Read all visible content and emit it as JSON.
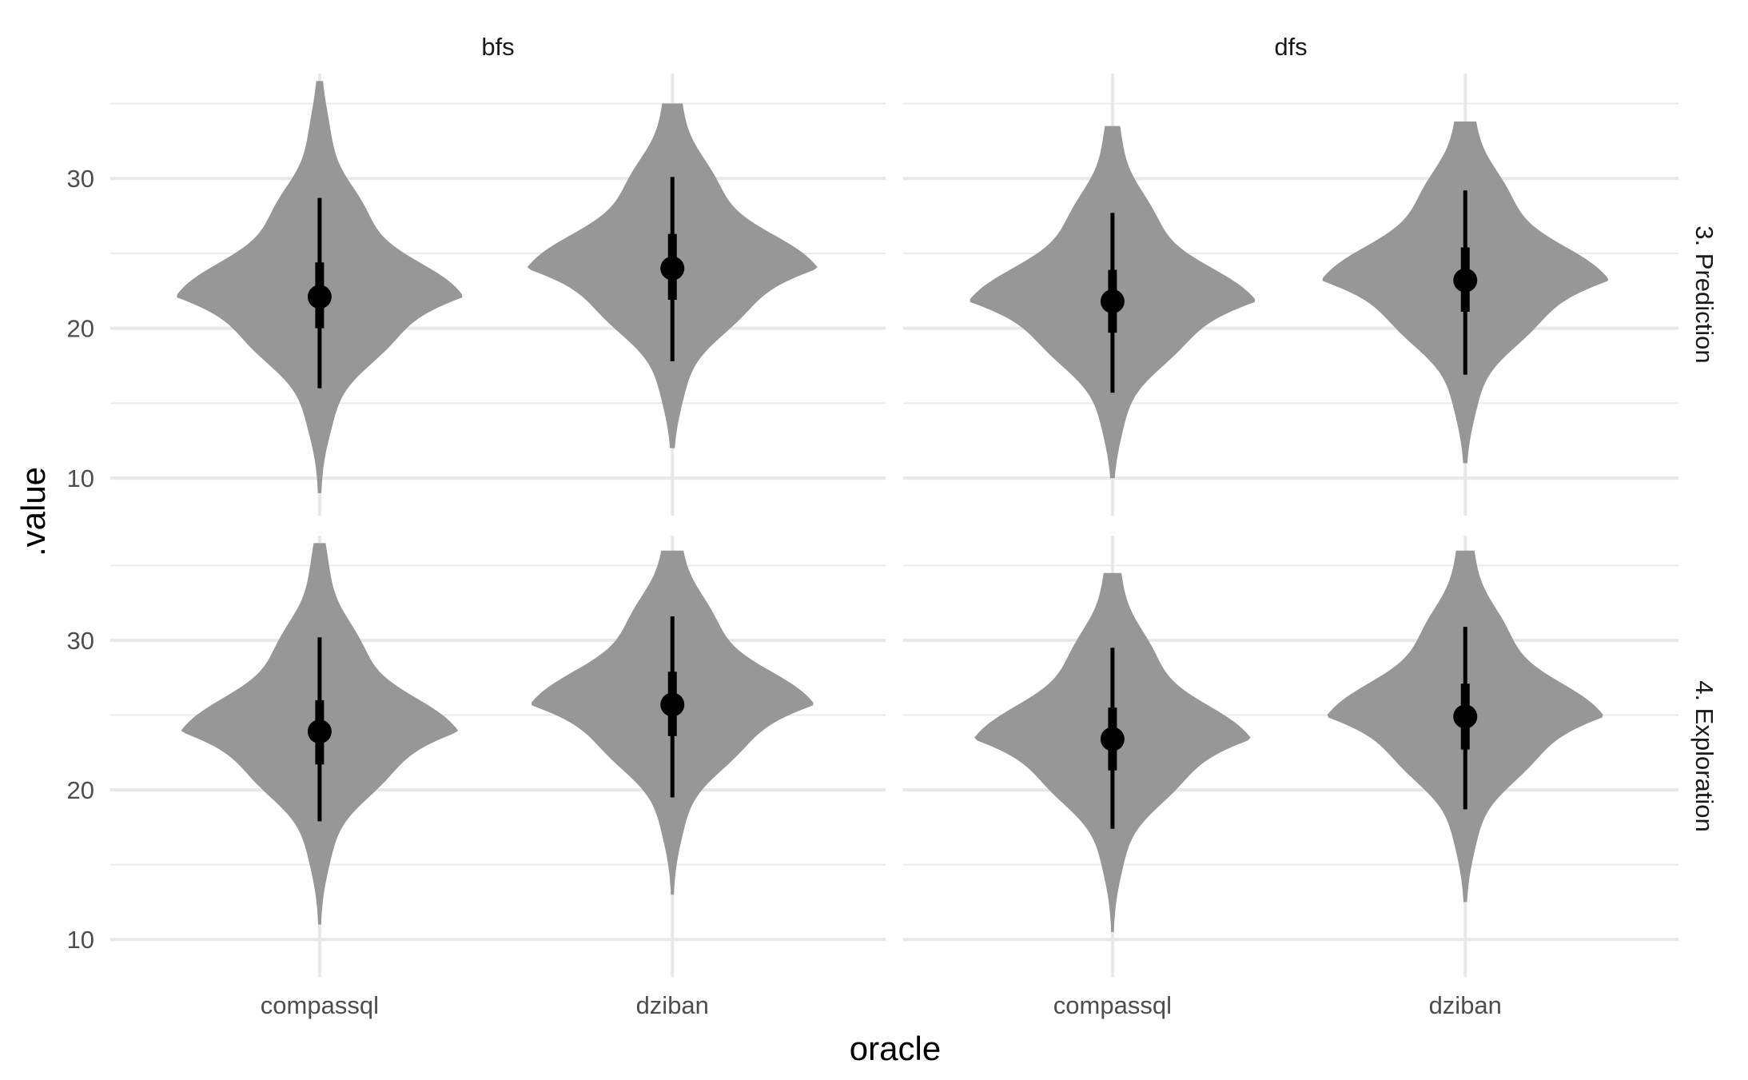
{
  "chart_data": {
    "type": "violin",
    "xlabel": "oracle",
    "ylabel": ".value",
    "ylim": [
      7.5,
      37.0
    ],
    "y_ticks": [
      10,
      20,
      30
    ],
    "categories": [
      "compassql",
      "dziban"
    ],
    "facet_columns": [
      "bfs",
      "dfs"
    ],
    "facet_rows": [
      "3. Prediction",
      "4. Exploration"
    ],
    "grid": true,
    "violin_color": "#979797",
    "interval_color": "#000000",
    "panels": [
      {
        "row": "3. Prediction",
        "col": "bfs",
        "series": [
          {
            "category": "compassql",
            "median": 22.1,
            "q_inner": [
              20.0,
              24.4
            ],
            "q_outer": [
              16.0,
              28.7
            ],
            "range": [
              9.0,
              36.5
            ],
            "width": 0.86
          },
          {
            "category": "dziban",
            "median": 24.0,
            "q_inner": [
              21.9,
              26.3
            ],
            "q_outer": [
              17.8,
              30.1
            ],
            "range": [
              12.0,
              35.0
            ],
            "width": 0.87
          }
        ]
      },
      {
        "row": "3. Prediction",
        "col": "dfs",
        "series": [
          {
            "category": "compassql",
            "median": 21.8,
            "q_inner": [
              19.7,
              23.9
            ],
            "q_outer": [
              15.7,
              27.7
            ],
            "range": [
              10.0,
              33.5
            ],
            "width": 0.86
          },
          {
            "category": "dziban",
            "median": 23.2,
            "q_inner": [
              21.1,
              25.4
            ],
            "q_outer": [
              16.9,
              29.2
            ],
            "range": [
              11.0,
              33.8
            ],
            "width": 0.86
          }
        ]
      },
      {
        "row": "4. Exploration",
        "col": "bfs",
        "series": [
          {
            "category": "compassql",
            "median": 23.9,
            "q_inner": [
              21.7,
              26.0
            ],
            "q_outer": [
              17.9,
              30.2
            ],
            "range": [
              11.0,
              36.5
            ],
            "width": 0.83
          },
          {
            "category": "dziban",
            "median": 25.7,
            "q_inner": [
              23.6,
              27.9
            ],
            "q_outer": [
              19.5,
              31.6
            ],
            "range": [
              13.0,
              36.0
            ],
            "width": 0.85
          }
        ]
      },
      {
        "row": "4. Exploration",
        "col": "dfs",
        "series": [
          {
            "category": "compassql",
            "median": 23.4,
            "q_inner": [
              21.3,
              25.5
            ],
            "q_outer": [
              17.4,
              29.5
            ],
            "range": [
              10.5,
              34.5
            ],
            "width": 0.83
          },
          {
            "category": "dziban",
            "median": 24.9,
            "q_inner": [
              22.7,
              27.1
            ],
            "q_outer": [
              18.7,
              30.9
            ],
            "range": [
              12.5,
              36.0
            ],
            "width": 0.83
          }
        ]
      }
    ]
  }
}
